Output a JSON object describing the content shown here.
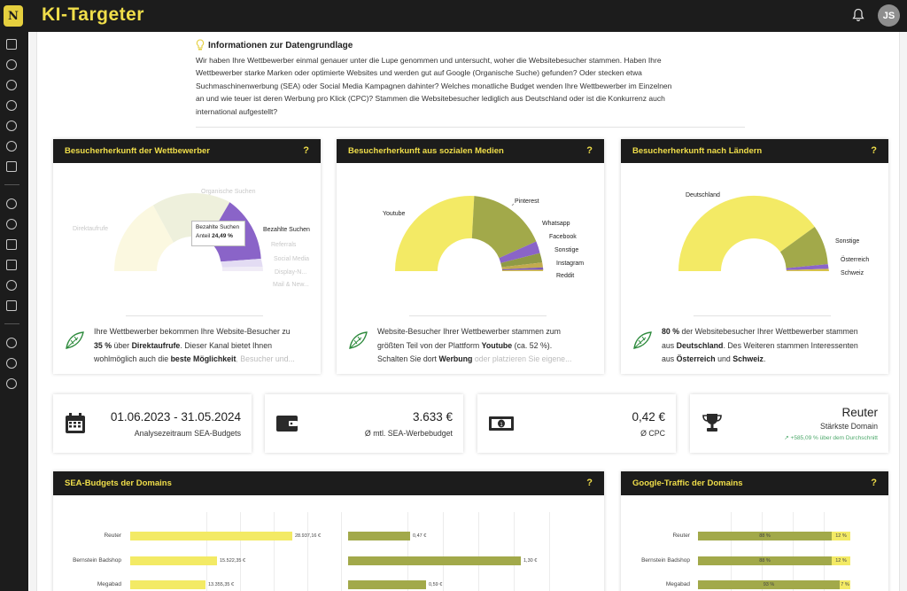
{
  "app": {
    "title": "KI-Targeter",
    "logo_letter": "N",
    "user_initials": "JS"
  },
  "info": {
    "title": "Informationen zur Datengrundlage",
    "lines": [
      "Wir haben Ihre Wettbewerber einmal genauer unter die Lupe genommen und untersucht, woher die Websitebesucher stammen. Haben Ihre",
      "Wettbewerber starke Marken oder optimierte Websites und werden gut auf Google (Organische Suche) gefunden? Oder stecken etwa",
      "Suchmaschinenwerbung (SEA) oder Social Media Kampagnen dahinter? Welches monatliche Budget wenden Ihre Wettbewerber im Einzelnen",
      "an und wie teuer ist deren Werbung pro Klick (CPC)? Stammen die Websitebesucher lediglich aus Deutschland oder ist die Konkurrenz auch",
      "international aufgestellt?"
    ]
  },
  "cards": {
    "wettbewerber": {
      "title": "Besucherherkunft der Wettbewerber",
      "help": "?",
      "labels": {
        "direkt": "Direktaufrufe",
        "organisch": "Organische Suchen",
        "bezahlt": "Bezahlte Suchen",
        "referrals": "Referrals",
        "social": "Social Media",
        "display": "Display-N...",
        "mail": "Mail & New..."
      },
      "tooltip": {
        "title": "Bezahlte Suchen",
        "label": "Anteil",
        "value": "24,49 %"
      },
      "text": {
        "l1": "Ihre Wettbewerber bekommen Ihre Website-Besucher zu",
        "l2a": "35 %",
        "l2b": " über ",
        "l2c": "Direktaufrufe",
        "l2d": ". Dieser Kanal bietet Ihnen",
        "l3a": "wohlmöglich auch die ",
        "l3b": "beste Möglichkeit",
        "l3c": ", Besucher und..."
      }
    },
    "social": {
      "title": "Besucherherkunft aus sozialen Medien",
      "help": "?",
      "labels": {
        "youtube": "Youtube",
        "pinterest": "Pinterest",
        "whatsapp": "Whatsapp",
        "facebook": "Facebook",
        "sonstige": "Sonstige",
        "instagram": "Instagram",
        "reddit": "Reddit"
      },
      "text": {
        "l1": "Website-Besucher Ihrer Wettbewerber stammen zum",
        "l2a": "größten Teil von der Plattform ",
        "l2b": "Youtube",
        "l2c": " (ca. 52 %).",
        "l3a": "Schalten Sie dort ",
        "l3b": "Werbung",
        "l3c": " oder platzieren Sie eigene..."
      }
    },
    "laender": {
      "title": "Besucherherkunft nach Ländern",
      "help": "?",
      "labels": {
        "deutschland": "Deutschland",
        "sonstige": "Sonstige",
        "oesterreich": "Österreich",
        "schweiz": "Schweiz"
      },
      "text": {
        "l1a": "80 %",
        "l1b": " der Websitebesucher Ihrer Wettbewerber stammen",
        "l2a": "aus ",
        "l2b": "Deutschland",
        "l2c": ". Des Weiteren stammen Interessenten",
        "l3a": "aus ",
        "l3b": "Österreich",
        "l3c": " und ",
        "l3d": "Schweiz",
        "l3e": "."
      }
    }
  },
  "stats": {
    "zeitraum": {
      "value": "01.06.2023 - 31.05.2024",
      "label": "Analysezeitraum SEA-Budgets",
      "icon": "calendar-icon"
    },
    "budget": {
      "value": "3.633 €",
      "label": "Ø mtl. SEA-Werbebudget",
      "icon": "wallet-icon"
    },
    "cpc": {
      "value": "0,42 €",
      "label": "Ø CPC",
      "icon": "banknote-icon"
    },
    "domain": {
      "value": "Reuter",
      "label": "Stärkste Domain",
      "trend": "↗ +585,09 % über dem Durchschnitt",
      "icon": "trophy-icon"
    }
  },
  "sea": {
    "title": "SEA-Budgets der Domains",
    "help": "?",
    "rows": [
      {
        "name": "Reuter",
        "budget": 28937.16,
        "budget_label": "28.937,16 €",
        "cpc": 0.47,
        "cpc_label": "0,47 €"
      },
      {
        "name": "Bernstein Badshop",
        "budget": 15522.35,
        "budget_label": "15.522,35 €",
        "cpc": 1.3,
        "cpc_label": "1,30 €"
      },
      {
        "name": "Megabad",
        "budget": 13355.35,
        "budget_label": "13.355,35 €",
        "cpc": 0.59,
        "cpc_label": "0,59 €"
      }
    ]
  },
  "traffic": {
    "title": "Google-Traffic der Domains",
    "help": "?",
    "rows": [
      {
        "name": "Reuter",
        "organic": 88,
        "organic_label": "88 %",
        "paid": 12,
        "paid_label": "12 %"
      },
      {
        "name": "Bernstein Badshop",
        "organic": 88,
        "organic_label": "88 %",
        "paid": 12,
        "paid_label": "12 %"
      },
      {
        "name": "Megabad",
        "organic": 93,
        "organic_label": "93 %",
        "paid": 7,
        "paid_label": "7 %"
      }
    ]
  },
  "chart_data": [
    {
      "type": "pie",
      "title": "Besucherherkunft der Wettbewerber",
      "categories": [
        "Direktaufrufe",
        "Organische Suchen",
        "Bezahlte Suchen",
        "Referrals",
        "Social Media",
        "Display-N...",
        "Mail & New..."
      ],
      "values": [
        35,
        30.5,
        24.49,
        5,
        3,
        1.5,
        0.5
      ]
    },
    {
      "type": "pie",
      "title": "Besucherherkunft aus sozialen Medien",
      "categories": [
        "Youtube",
        "Pinterest",
        "Whatsapp",
        "Facebook",
        "Sonstige",
        "Instagram",
        "Reddit"
      ],
      "values": [
        52,
        22,
        6,
        6,
        6,
        5,
        3
      ]
    },
    {
      "type": "pie",
      "title": "Besucherherkunft nach Ländern",
      "categories": [
        "Deutschland",
        "Sonstige",
        "Österreich",
        "Schweiz"
      ],
      "values": [
        80,
        15,
        3,
        2
      ]
    },
    {
      "type": "bar",
      "title": "SEA-Budgets der Domains",
      "categories": [
        "Reuter",
        "Bernstein Badshop",
        "Megabad"
      ],
      "series": [
        {
          "values": [
            28937.16,
            15522.35,
            13355.35
          ]
        },
        {
          "values": [
            0.47,
            1.3,
            0.59
          ]
        }
      ]
    },
    {
      "type": "bar",
      "title": "Google-Traffic der Domains",
      "categories": [
        "Reuter",
        "Bernstein Badshop",
        "Megabad"
      ],
      "series": [
        {
          "values": [
            88,
            88,
            93
          ]
        },
        {
          "values": [
            12,
            12,
            7
          ]
        }
      ]
    }
  ],
  "colors": {
    "accent": "#f0de4a",
    "dark": "#1c1c1c",
    "yellow": "#f3ea65",
    "olive": "#a2a94a",
    "purple": "#8a64c8"
  }
}
